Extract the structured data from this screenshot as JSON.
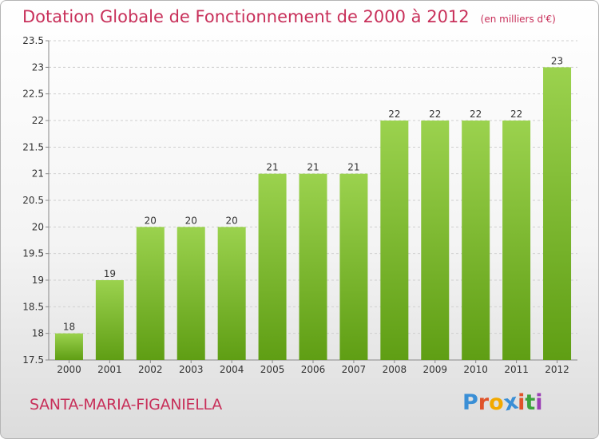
{
  "header": {
    "title": "Dotation Globale de Fonctionnement de 2000 à 2012",
    "subtitle": "(en milliers d'€)"
  },
  "footer": {
    "commune": "SANTA-MARIA-FIGANIELLA",
    "logo_letters": [
      "P",
      "r",
      "o",
      "x",
      "i",
      "t",
      "i"
    ],
    "logo_colors": [
      "#3a8fd6",
      "#e0532a",
      "#f2a900",
      "#3a8fd6",
      "#e0532a",
      "#3da33d",
      "#9b3fb5"
    ]
  },
  "colors": {
    "bar_top": "#9bd24e",
    "bar_bottom": "#5f9e14",
    "grid": "#cfcfcf",
    "axis_text": "#333333"
  },
  "chart_data": {
    "type": "bar",
    "categories": [
      "2000",
      "2001",
      "2002",
      "2003",
      "2004",
      "2005",
      "2006",
      "2007",
      "2008",
      "2009",
      "2010",
      "2011",
      "2012"
    ],
    "values": [
      18,
      19,
      20,
      20,
      20,
      21,
      21,
      21,
      22,
      22,
      22,
      22,
      23
    ],
    "data_labels": [
      "18",
      "19",
      "20",
      "20",
      "20",
      "21",
      "21",
      "21",
      "22",
      "22",
      "22",
      "22",
      "23"
    ],
    "yticks": [
      "17.5",
      "18",
      "18.5",
      "19",
      "19.5",
      "20",
      "20.5",
      "21",
      "21.5",
      "22",
      "22.5",
      "23",
      "23.5"
    ],
    "ylim": [
      17.5,
      23.5
    ],
    "grid": true,
    "title": "Dotation Globale de Fonctionnement de 2000 à 2012"
  }
}
